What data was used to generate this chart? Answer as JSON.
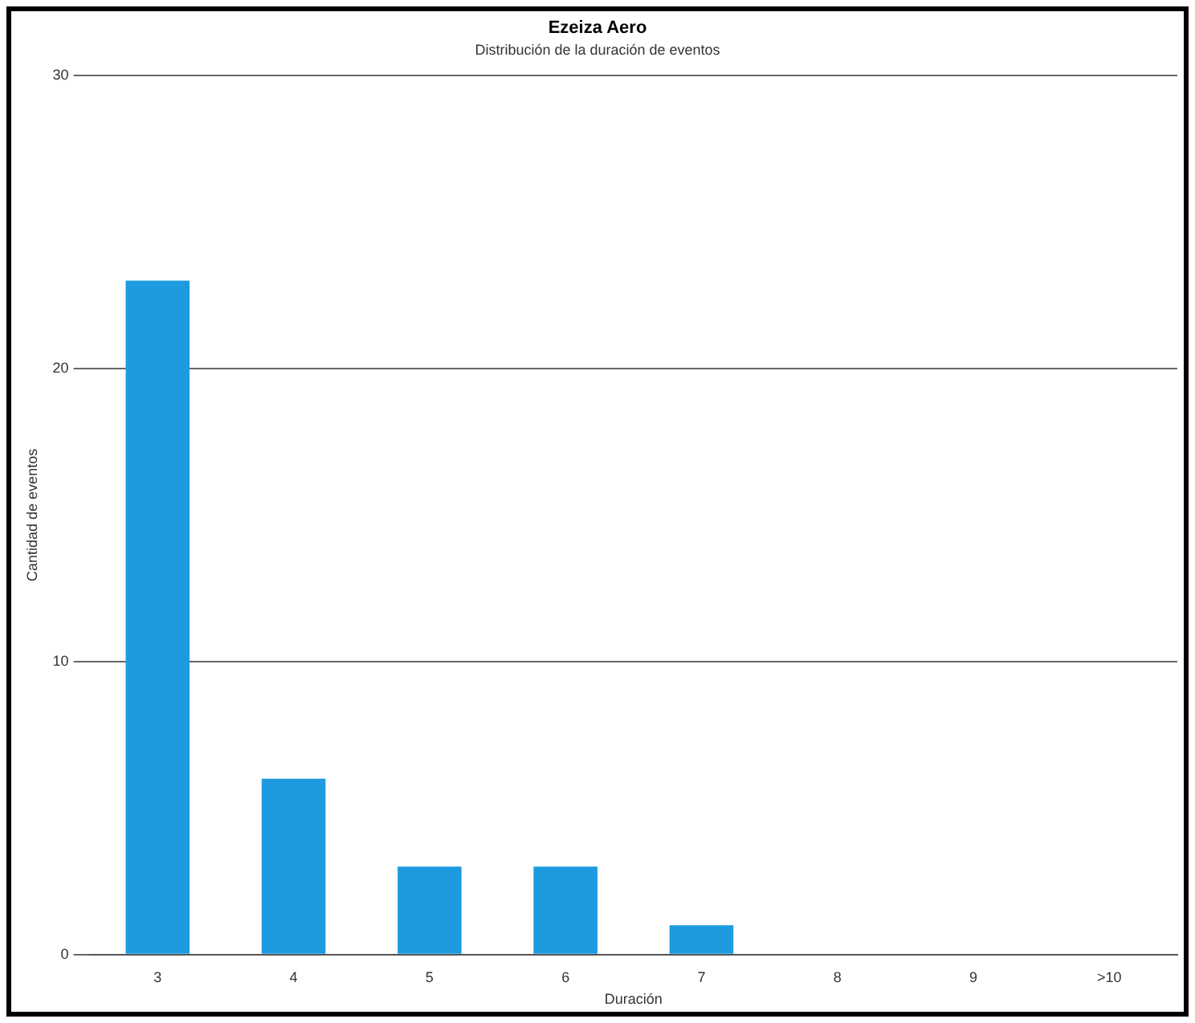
{
  "chart_data": {
    "type": "bar",
    "title": "Ezeiza Aero",
    "subtitle": "Distribución de la duración de eventos",
    "xlabel": "Duración",
    "ylabel": "Cantidad de eventos",
    "categories": [
      "3",
      "4",
      "5",
      "6",
      "7",
      "8",
      "9",
      ">10"
    ],
    "values": [
      23,
      6,
      3,
      3,
      1,
      0,
      0,
      0
    ],
    "color": "#1e9be0",
    "ylim": [
      0,
      30
    ],
    "yticks": [
      0,
      10,
      20,
      30
    ],
    "grid": "y",
    "legend": false
  }
}
